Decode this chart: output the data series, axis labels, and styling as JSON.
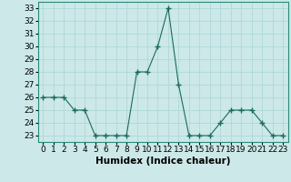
{
  "x": [
    0,
    1,
    2,
    3,
    4,
    5,
    6,
    7,
    8,
    9,
    10,
    11,
    12,
    13,
    14,
    15,
    16,
    17,
    18,
    19,
    20,
    21,
    22,
    23
  ],
  "y": [
    26,
    26,
    26,
    25,
    25,
    23,
    23,
    23,
    23,
    28,
    28,
    30,
    33,
    27,
    23,
    23,
    23,
    24,
    25,
    25,
    25,
    24,
    23,
    23
  ],
  "line_color": "#1a6b5a",
  "marker": "+",
  "marker_color": "#1a6b5a",
  "bg_color": "#cce8e8",
  "grid_color": "#b0d8d8",
  "xlabel": "Humidex (Indice chaleur)",
  "xlabel_fontsize": 7.5,
  "tick_fontsize": 6.5,
  "ylim": [
    22.5,
    33.5
  ],
  "yticks": [
    23,
    24,
    25,
    26,
    27,
    28,
    29,
    30,
    31,
    32,
    33
  ],
  "xlim": [
    -0.5,
    23.5
  ],
  "xticks": [
    0,
    1,
    2,
    3,
    4,
    5,
    6,
    7,
    8,
    9,
    10,
    11,
    12,
    13,
    14,
    15,
    16,
    17,
    18,
    19,
    20,
    21,
    22,
    23
  ]
}
